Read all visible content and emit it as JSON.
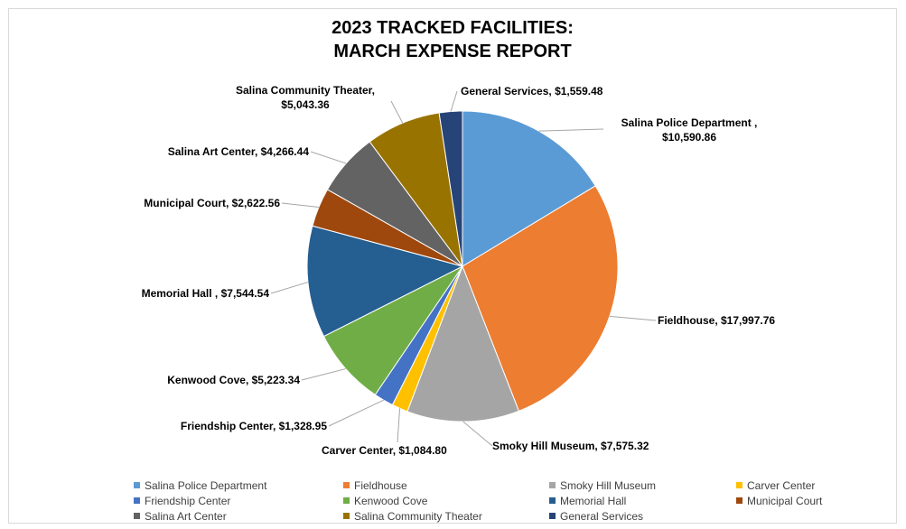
{
  "chart_data": {
    "type": "pie",
    "title": "2023 TRACKED FACILITIES: MARCH EXPENSE REPORT",
    "categories": [
      "Salina Police Department",
      "Fieldhouse",
      "Smoky Hill Museum",
      "Carver Center",
      "Friendship Center",
      "Kenwood Cove",
      "Memorial Hall",
      "Municipal Court",
      "Salina Art Center",
      "Salina Community Theater",
      "General Services"
    ],
    "values": [
      10590.86,
      17997.76,
      7575.32,
      1084.8,
      1328.95,
      5223.34,
      7544.54,
      2622.56,
      4266.44,
      5043.36,
      1559.48
    ],
    "value_labels": [
      "Salina Police Department , $10,590.86",
      "Fieldhouse, $17,997.76",
      "Smoky Hill Museum, $7,575.32",
      "Carver Center, $1,084.80",
      "Friendship Center, $1,328.95",
      "Kenwood Cove, $5,223.34",
      "Memorial Hall , $7,544.54",
      "Municipal Court, $2,622.56",
      "Salina Art Center, $4,266.44",
      "Salina Community Theater, $5,043.36",
      "General Services, $1,559.48"
    ],
    "colors": [
      "#5b9bd5",
      "#ed7d31",
      "#a5a5a5",
      "#ffc000",
      "#4472c4",
      "#70ad47",
      "#255e91",
      "#9e480e",
      "#636363",
      "#997300",
      "#264478"
    ],
    "legend": "bottom"
  }
}
